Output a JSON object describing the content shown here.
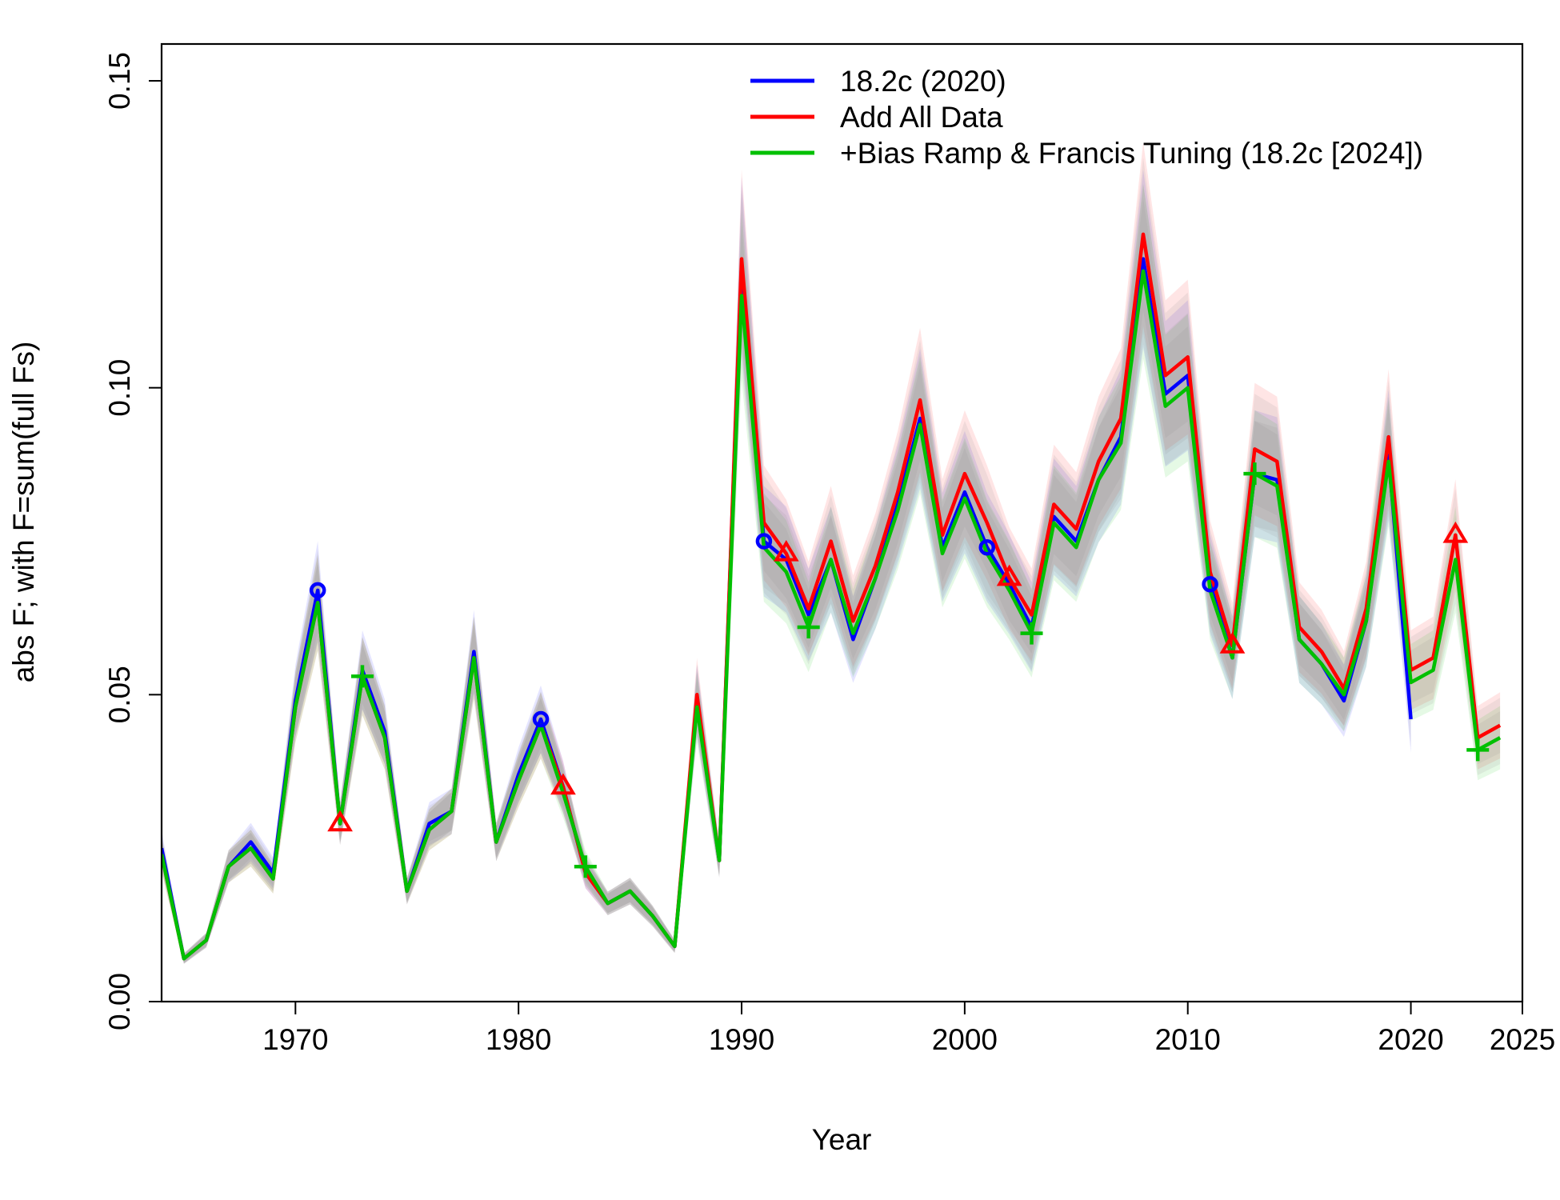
{
  "chart_data": {
    "type": "line",
    "title": "",
    "xlabel": "Year",
    "ylabel": "abs F; with F=sum(full Fs)",
    "xlim": [
      1964,
      2025
    ],
    "ylim": [
      0,
      0.156
    ],
    "xticks": [
      1970,
      1980,
      1990,
      2000,
      2010,
      2020,
      2025
    ],
    "yticks": [
      0.0,
      0.05,
      0.1,
      0.15
    ],
    "ytick_labels": [
      "0.00",
      "0.05",
      "0.10",
      "0.15"
    ],
    "grid": false,
    "legend_position": "top-right",
    "series": [
      {
        "name": "18.2c (2020)",
        "color": "#0000ff",
        "marker": "circle",
        "marker_years": [
          1971,
          1981,
          1991,
          2001,
          2011
        ],
        "x": [
          1964,
          1965,
          1966,
          1967,
          1968,
          1969,
          1970,
          1971,
          1972,
          1973,
          1974,
          1975,
          1976,
          1977,
          1978,
          1979,
          1980,
          1981,
          1982,
          1983,
          1984,
          1985,
          1986,
          1987,
          1988,
          1989,
          1990,
          1991,
          1992,
          1993,
          1994,
          1995,
          1996,
          1997,
          1998,
          1999,
          2000,
          2001,
          2002,
          2003,
          2004,
          2005,
          2006,
          2007,
          2008,
          2009,
          2010,
          2011,
          2012,
          2013,
          2014,
          2015,
          2016,
          2017,
          2018,
          2019,
          2020
        ],
        "y": [
          0.025,
          0.007,
          0.01,
          0.022,
          0.026,
          0.021,
          0.049,
          0.067,
          0.029,
          0.054,
          0.044,
          0.018,
          0.029,
          0.031,
          0.057,
          0.026,
          0.037,
          0.046,
          0.035,
          0.021,
          0.016,
          0.018,
          0.014,
          0.009,
          0.049,
          0.023,
          0.12,
          0.075,
          0.072,
          0.063,
          0.072,
          0.059,
          0.069,
          0.081,
          0.095,
          0.074,
          0.083,
          0.074,
          0.068,
          0.061,
          0.079,
          0.075,
          0.085,
          0.092,
          0.121,
          0.099,
          0.102,
          0.068,
          0.056,
          0.086,
          0.085,
          0.059,
          0.055,
          0.049,
          0.062,
          0.089,
          0.046
        ]
      },
      {
        "name": "Add All Data",
        "color": "#ff0000",
        "marker": "triangle",
        "marker_years": [
          1972,
          1982,
          1992,
          2002,
          2012,
          2022
        ],
        "x": [
          1964,
          1965,
          1966,
          1967,
          1968,
          1969,
          1970,
          1971,
          1972,
          1973,
          1974,
          1975,
          1976,
          1977,
          1978,
          1979,
          1980,
          1981,
          1982,
          1983,
          1984,
          1985,
          1986,
          1987,
          1988,
          1989,
          1990,
          1991,
          1992,
          1993,
          1994,
          1995,
          1996,
          1997,
          1998,
          1999,
          2000,
          2001,
          2002,
          2003,
          2004,
          2005,
          2006,
          2007,
          2008,
          2009,
          2010,
          2011,
          2012,
          2013,
          2014,
          2015,
          2016,
          2017,
          2018,
          2019,
          2020,
          2021,
          2022,
          2023,
          2024
        ],
        "y": [
          0.024,
          0.007,
          0.01,
          0.022,
          0.025,
          0.02,
          0.048,
          0.065,
          0.029,
          0.053,
          0.043,
          0.018,
          0.028,
          0.031,
          0.056,
          0.026,
          0.036,
          0.045,
          0.035,
          0.021,
          0.016,
          0.018,
          0.014,
          0.009,
          0.05,
          0.023,
          0.121,
          0.078,
          0.073,
          0.064,
          0.075,
          0.062,
          0.071,
          0.083,
          0.098,
          0.076,
          0.086,
          0.078,
          0.069,
          0.063,
          0.081,
          0.077,
          0.088,
          0.095,
          0.125,
          0.102,
          0.105,
          0.07,
          0.058,
          0.09,
          0.088,
          0.061,
          0.057,
          0.051,
          0.064,
          0.092,
          0.054,
          0.056,
          0.076,
          0.043,
          0.045
        ]
      },
      {
        "name": "+Bias Ramp & Francis Tuning (18.2c [2024])",
        "color": "#00c000",
        "marker": "plus",
        "marker_years": [
          1973,
          1983,
          1993,
          2003,
          2013,
          2023
        ],
        "x": [
          1964,
          1965,
          1966,
          1967,
          1968,
          1969,
          1970,
          1971,
          1972,
          1973,
          1974,
          1975,
          1976,
          1977,
          1978,
          1979,
          1980,
          1981,
          1982,
          1983,
          1984,
          1985,
          1986,
          1987,
          1988,
          1989,
          1990,
          1991,
          1992,
          1993,
          1994,
          1995,
          1996,
          1997,
          1998,
          1999,
          2000,
          2001,
          2002,
          2003,
          2004,
          2005,
          2006,
          2007,
          2008,
          2009,
          2010,
          2011,
          2012,
          2013,
          2014,
          2015,
          2016,
          2017,
          2018,
          2019,
          2020,
          2021,
          2022,
          2023,
          2024
        ],
        "y": [
          0.024,
          0.007,
          0.01,
          0.022,
          0.025,
          0.02,
          0.048,
          0.065,
          0.029,
          0.053,
          0.043,
          0.018,
          0.028,
          0.031,
          0.056,
          0.026,
          0.036,
          0.045,
          0.034,
          0.022,
          0.016,
          0.018,
          0.014,
          0.009,
          0.048,
          0.023,
          0.115,
          0.074,
          0.07,
          0.061,
          0.072,
          0.06,
          0.069,
          0.08,
          0.094,
          0.073,
          0.082,
          0.073,
          0.067,
          0.06,
          0.078,
          0.074,
          0.085,
          0.091,
          0.119,
          0.097,
          0.1,
          0.067,
          0.056,
          0.086,
          0.084,
          0.059,
          0.055,
          0.05,
          0.062,
          0.088,
          0.052,
          0.054,
          0.072,
          0.041,
          0.043
        ]
      }
    ]
  }
}
